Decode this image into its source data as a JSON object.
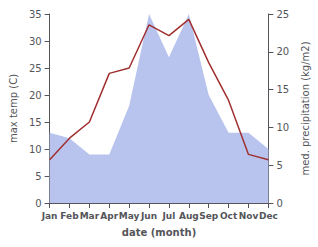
{
  "chart_data": {
    "type": "line",
    "xlabel": "date (month)",
    "ylabel": "max temp (C)",
    "y2label": "med. precipitation (kg/m2)",
    "categories": [
      "Jan",
      "Feb",
      "Mar",
      "Apr",
      "May",
      "Jun",
      "Jul",
      "Aug",
      "Sep",
      "Oct",
      "Nov",
      "Dec"
    ],
    "series": [
      {
        "type": "area",
        "color": "#b8c4ee",
        "values": [
          13,
          12,
          9,
          9,
          18,
          35,
          27,
          35,
          20,
          13,
          13,
          10
        ]
      },
      {
        "type": "line",
        "color": "#a03030",
        "values": [
          8,
          12,
          15,
          24,
          25,
          33,
          31,
          34,
          26,
          19,
          9,
          8
        ]
      }
    ],
    "ylim": [
      0,
      35
    ],
    "yticks": [
      0,
      5,
      10,
      15,
      20,
      25,
      30,
      35
    ],
    "y2lim": [
      0,
      25
    ],
    "y2ticks": [
      0,
      5,
      10,
      15,
      20,
      25
    ],
    "grid": false
  }
}
